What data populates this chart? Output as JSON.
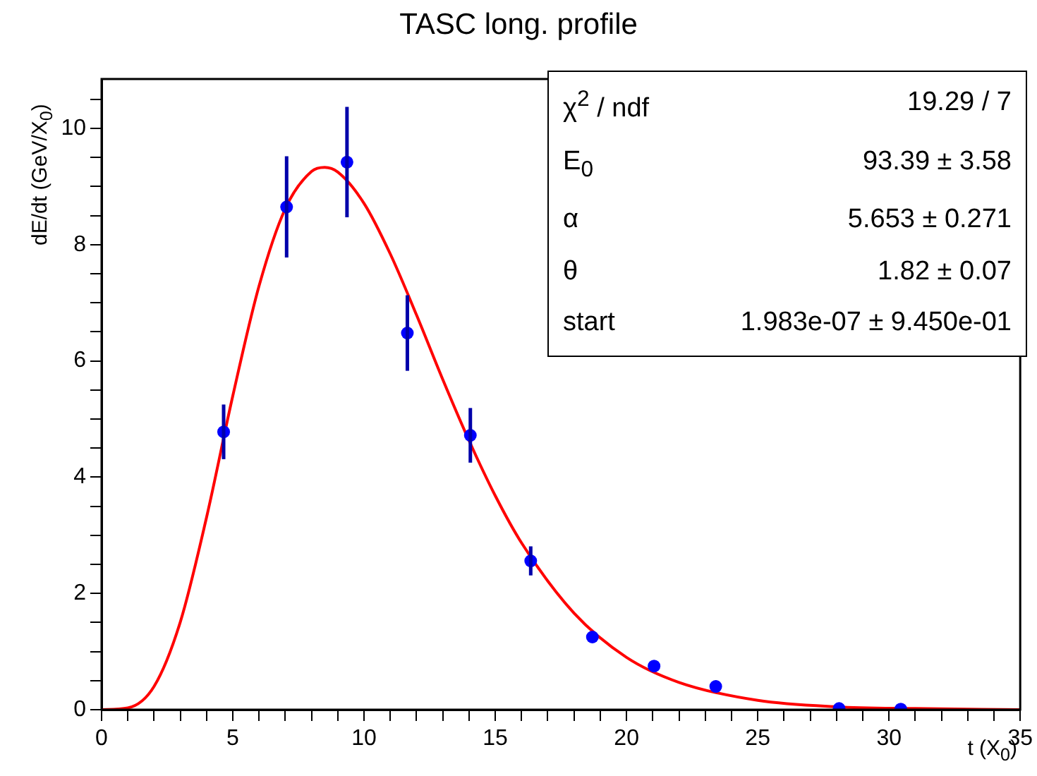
{
  "chart_data": {
    "type": "scatter",
    "title": "TASC long. profile",
    "xlabel": "t (X$_{0}$)",
    "ylabel": "dE/dt (GeV/X$_{0}$)",
    "xlim": [
      0,
      35
    ],
    "ylim": [
      0,
      10.85
    ],
    "xticks": [
      0,
      {
        "value": 1,
        "label": null
      },
      {
        "value": 2,
        "label": null
      },
      {
        "value": 3,
        "label": null
      },
      {
        "value": 4,
        "label": null
      },
      5,
      {
        "value": 6,
        "label": null
      },
      {
        "value": 7,
        "label": null
      },
      {
        "value": 8,
        "label": null
      },
      {
        "value": 9,
        "label": null
      },
      10,
      {
        "value": 11,
        "label": null
      },
      {
        "value": 12,
        "label": null
      },
      {
        "value": 13,
        "label": null
      },
      {
        "value": 14,
        "label": null
      },
      15,
      {
        "value": 16,
        "label": null
      },
      {
        "value": 17,
        "label": null
      },
      {
        "value": 18,
        "label": null
      },
      {
        "value": 19,
        "label": null
      },
      20,
      {
        "value": 21,
        "label": null
      },
      {
        "value": 22,
        "label": null
      },
      {
        "value": 23,
        "label": null
      },
      {
        "value": 24,
        "label": null
      },
      25,
      {
        "value": 26,
        "label": null
      },
      {
        "value": 27,
        "label": null
      },
      {
        "value": 28,
        "label": null
      },
      {
        "value": 29,
        "label": null
      },
      30,
      {
        "value": 31,
        "label": null
      },
      {
        "value": 32,
        "label": null
      },
      {
        "value": 33,
        "label": null
      },
      {
        "value": 34,
        "label": null
      },
      35
    ],
    "yticks": [
      0,
      {
        "value": 0.5,
        "label": null
      },
      {
        "value": 1,
        "label": null
      },
      {
        "value": 1.5,
        "label": null
      },
      2,
      {
        "value": 2.5,
        "label": null
      },
      {
        "value": 3,
        "label": null
      },
      {
        "value": 3.5,
        "label": null
      },
      4,
      {
        "value": 4.5,
        "label": null
      },
      {
        "value": 5,
        "label": null
      },
      {
        "value": 5.5,
        "label": null
      },
      6,
      {
        "value": 6.5,
        "label": null
      },
      {
        "value": 7,
        "label": null
      },
      {
        "value": 7.5,
        "label": null
      },
      8,
      {
        "value": 8.5,
        "label": null
      },
      {
        "value": 9,
        "label": null
      },
      {
        "value": 9.5,
        "label": null
      },
      10,
      {
        "value": 10.5,
        "label": null
      }
    ],
    "marker": "circle",
    "legend": false,
    "series": [
      {
        "color": "#0000ff",
        "x": [
          4.65,
          7.05,
          9.35,
          11.65,
          14.05,
          16.35,
          18.7,
          21.05,
          23.4,
          28.1,
          30.45
        ],
        "values": [
          4.78,
          8.65,
          9.42,
          6.48,
          4.72,
          2.56,
          1.25,
          0.75,
          0.4,
          0.02,
          0.01
        ],
        "errors": [
          0.47,
          0.87,
          0.95,
          0.65,
          0.47,
          0.25,
          null,
          null,
          null,
          null,
          null
        ]
      },
      {
        "type": "line",
        "color": "#ff0000",
        "marker": "none",
        "x": [
          0,
          1,
          2,
          3,
          4,
          5,
          6,
          7,
          8,
          8.5,
          9,
          10,
          11,
          12,
          13,
          14,
          15,
          16,
          18,
          20,
          22,
          25,
          28,
          31,
          35
        ],
        "values": [
          0,
          0.03,
          0.4,
          1.51,
          3.31,
          5.4,
          7.29,
          8.62,
          9.26,
          9.33,
          9.25,
          8.71,
          7.84,
          6.79,
          5.68,
          4.63,
          3.68,
          2.87,
          1.66,
          0.9,
          0.47,
          0.16,
          0.05,
          0.02,
          0
        ]
      }
    ],
    "annotations": [
      "χ$^{2}$ / ndf",
      "19.29 / 7",
      "E$_{0}$",
      "93.39 ± 3.58",
      "α",
      "5.653 ± 0.271",
      "θ",
      "1.82 ± 0.07",
      "start",
      "1.983e-07 ± 9.450e-01"
    ]
  }
}
